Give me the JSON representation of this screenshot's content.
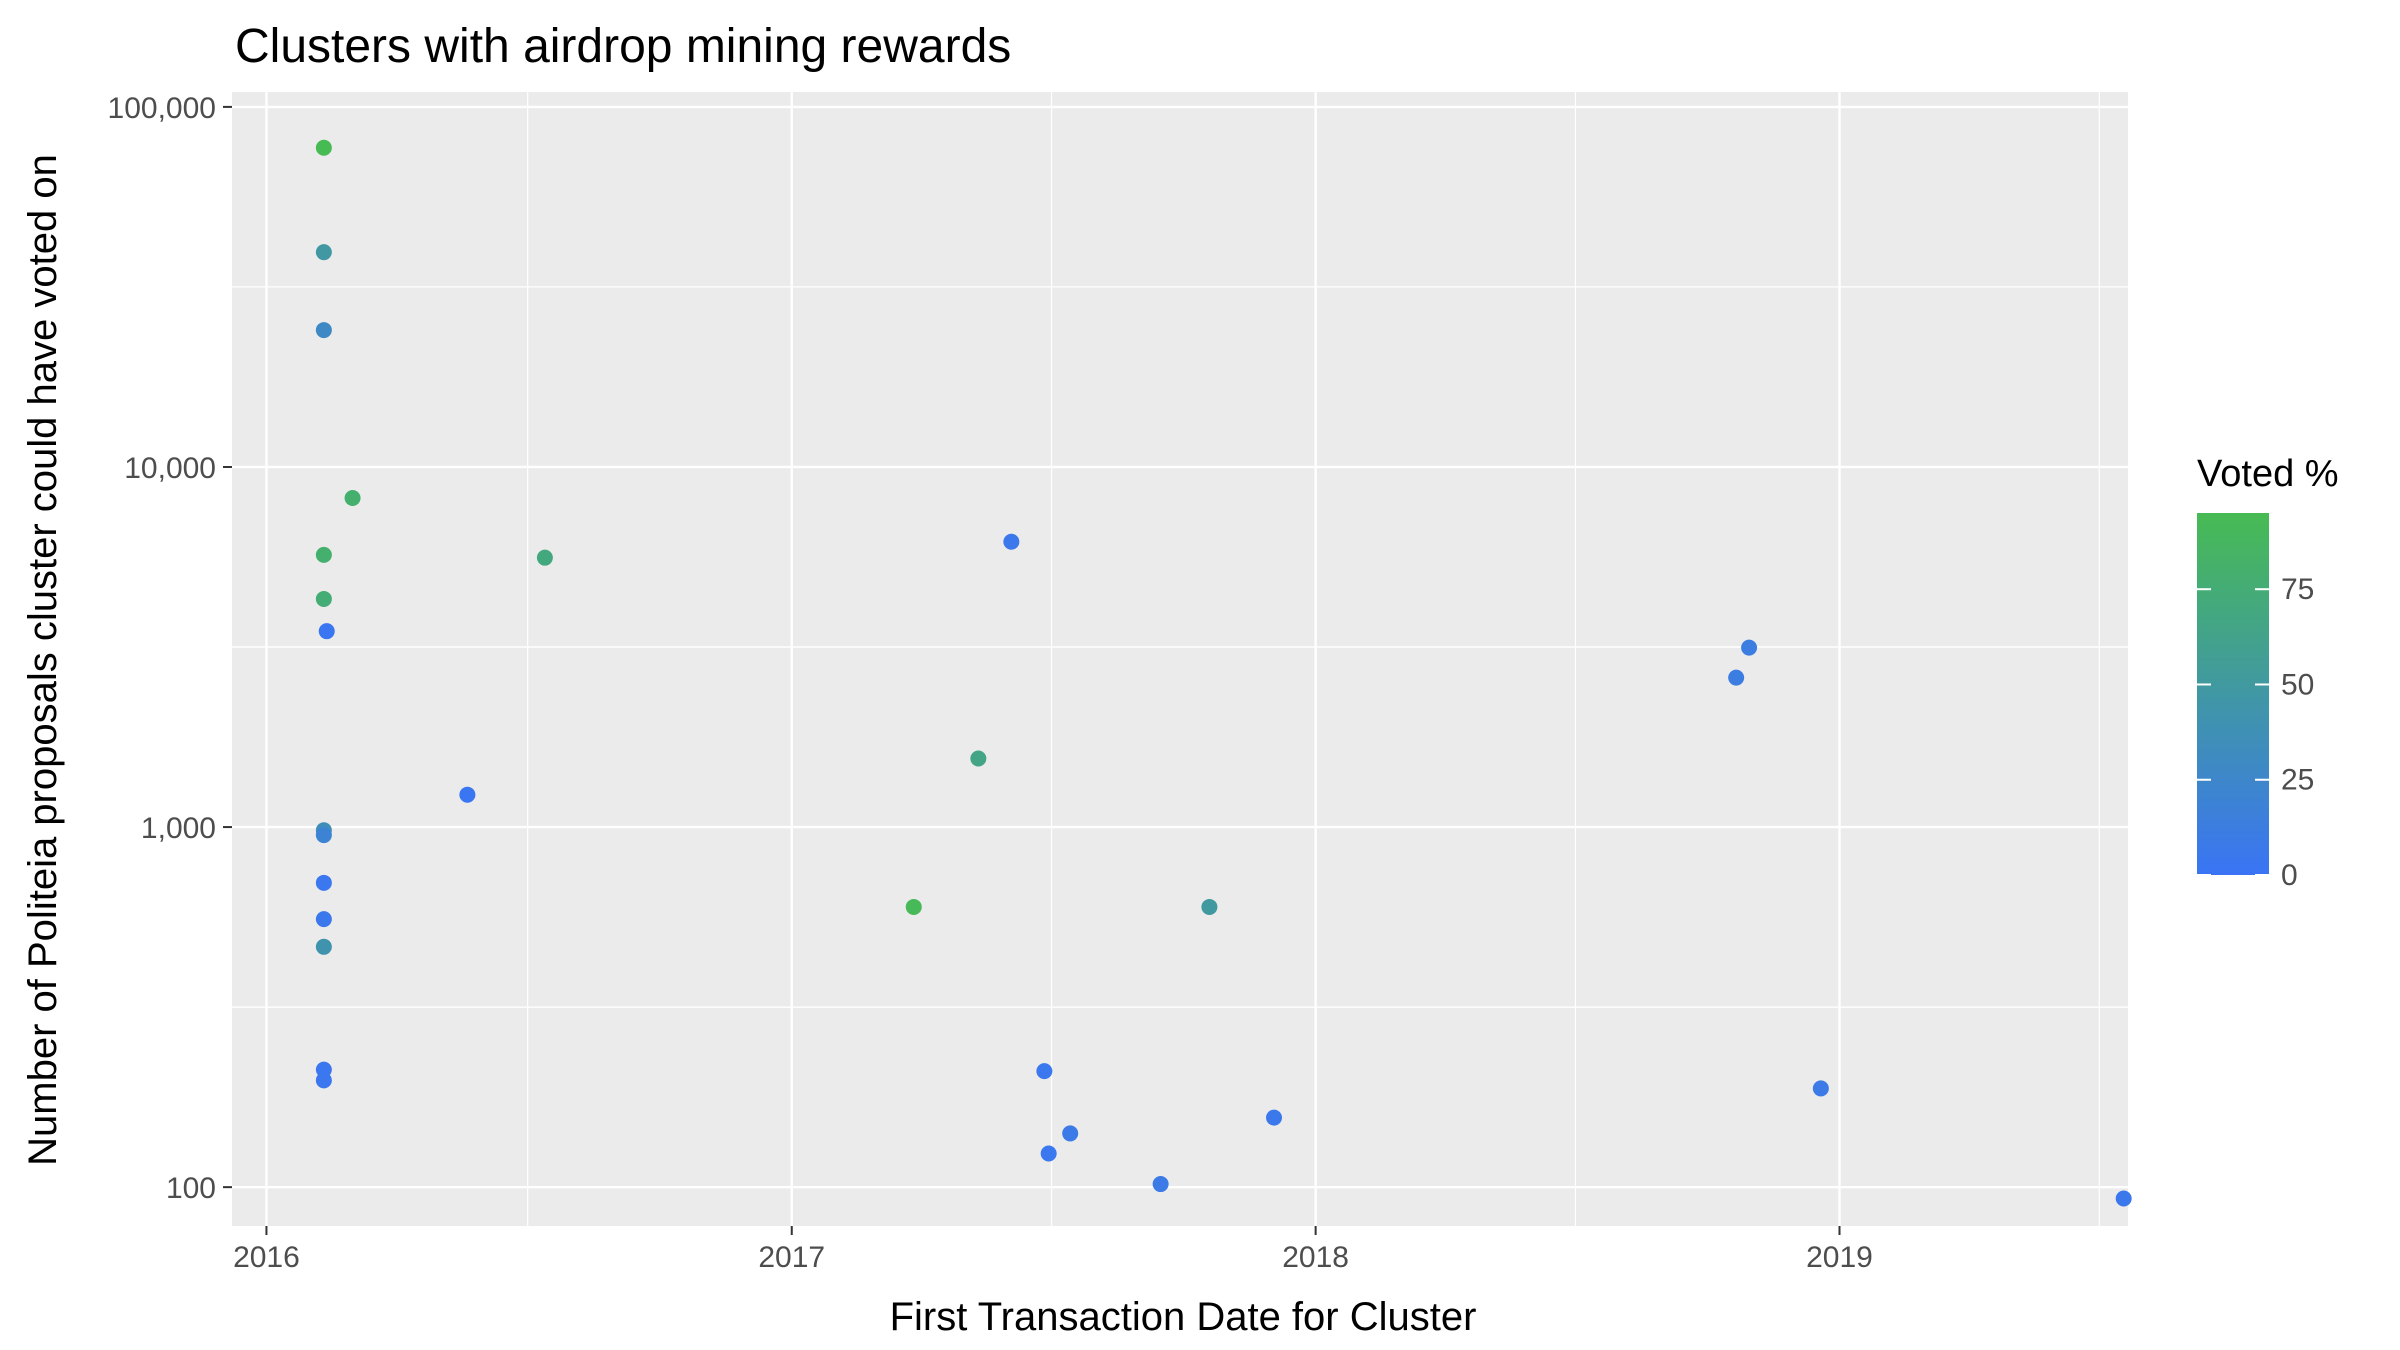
{
  "chart_data": {
    "type": "scatter",
    "title": "Clusters with airdrop mining rewards",
    "xlabel": "First Transaction Date for Cluster",
    "ylabel": "Number of Politeia proposals cluster could have voted on",
    "x_axis": {
      "type": "date",
      "ticks": [
        "2016",
        "2017",
        "2018",
        "2019"
      ],
      "range": [
        "2015-12-08",
        "2019-07-21"
      ]
    },
    "y_axis": {
      "type": "log10",
      "ticks": [
        "100",
        "1,000",
        "10,000",
        "100,000"
      ],
      "tick_values": [
        100,
        1000,
        10000,
        100000
      ],
      "range": [
        78,
        110000
      ]
    },
    "grid": true,
    "legend": {
      "title": "Voted %",
      "placement": "right",
      "type": "colorbar",
      "ticks": [
        "0",
        "25",
        "50",
        "75"
      ],
      "tick_values": [
        0,
        25,
        50,
        75
      ],
      "range": [
        0,
        95
      ],
      "color_low": "#3a74f5",
      "color_high": "#47bb53"
    },
    "background_color": "#ebebeb",
    "points": [
      {
        "x": "2016-02-10",
        "y": 77000,
        "voted_pct": 95
      },
      {
        "x": "2016-02-10",
        "y": 39500,
        "voted_pct": 48
      },
      {
        "x": "2016-02-10",
        "y": 24000,
        "voted_pct": 28
      },
      {
        "x": "2016-03-01",
        "y": 8200,
        "voted_pct": 80
      },
      {
        "x": "2016-02-10",
        "y": 5700,
        "voted_pct": 80
      },
      {
        "x": "2016-02-10",
        "y": 4300,
        "voted_pct": 75
      },
      {
        "x": "2016-02-12",
        "y": 3500,
        "voted_pct": 2
      },
      {
        "x": "2016-02-10",
        "y": 980,
        "voted_pct": 35
      },
      {
        "x": "2016-02-10",
        "y": 950,
        "voted_pct": 20
      },
      {
        "x": "2016-02-10",
        "y": 700,
        "voted_pct": 4
      },
      {
        "x": "2016-02-10",
        "y": 555,
        "voted_pct": 5
      },
      {
        "x": "2016-02-10",
        "y": 465,
        "voted_pct": 42
      },
      {
        "x": "2016-02-10",
        "y": 212,
        "voted_pct": 4
      },
      {
        "x": "2016-02-10",
        "y": 198,
        "voted_pct": 4
      },
      {
        "x": "2016-05-20",
        "y": 1230,
        "voted_pct": 2
      },
      {
        "x": "2016-07-13",
        "y": 5600,
        "voted_pct": 70
      },
      {
        "x": "2017-03-27",
        "y": 600,
        "voted_pct": 92
      },
      {
        "x": "2017-05-11",
        "y": 1550,
        "voted_pct": 65
      },
      {
        "x": "2017-06-03",
        "y": 6200,
        "voted_pct": 5
      },
      {
        "x": "2017-06-26",
        "y": 210,
        "voted_pct": 4
      },
      {
        "x": "2017-06-29",
        "y": 124,
        "voted_pct": 4
      },
      {
        "x": "2017-07-14",
        "y": 141,
        "voted_pct": 8
      },
      {
        "x": "2017-09-15",
        "y": 102,
        "voted_pct": 8
      },
      {
        "x": "2017-10-19",
        "y": 600,
        "voted_pct": 50
      },
      {
        "x": "2017-12-03",
        "y": 156,
        "voted_pct": 6
      },
      {
        "x": "2018-10-21",
        "y": 2600,
        "voted_pct": 12
      },
      {
        "x": "2018-10-30",
        "y": 3150,
        "voted_pct": 12
      },
      {
        "x": "2018-12-19",
        "y": 188,
        "voted_pct": 8
      },
      {
        "x": "2019-07-18",
        "y": 93,
        "voted_pct": 6
      }
    ]
  }
}
